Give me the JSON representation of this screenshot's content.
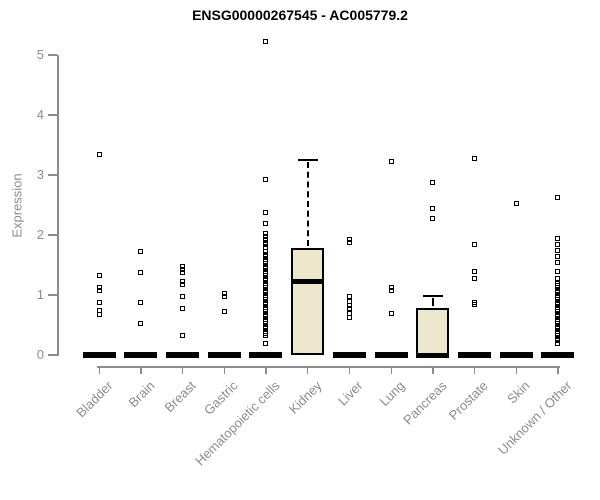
{
  "chart_data": {
    "type": "boxplot",
    "title": "ENSG00000267545 - AC005779.2",
    "ylabel": "Expression",
    "ylim": [
      0,
      5
    ],
    "yticks": [
      0,
      1,
      2,
      3,
      4,
      5
    ],
    "grid": false,
    "legend": "none",
    "marker": "open-square",
    "colors": {
      "box_fill": "#ece7cd",
      "box_border": "#000000",
      "axis": "#8c8c8c",
      "tick_label": "#8c8c8c",
      "title": "#000000",
      "marker": "#000000"
    },
    "categories": [
      "Bladder",
      "Brain",
      "Breast",
      "Gastric",
      "Hematopoietic cells",
      "Kidney",
      "Liver",
      "Lung",
      "Pancreas",
      "Prostate",
      "Skin",
      "Unknown / Other"
    ],
    "series": [
      {
        "name": "Bladder",
        "box": {
          "q1": 0,
          "median": 0,
          "q3": 0,
          "whisker_low": 0,
          "whisker_high": 0
        },
        "points": [
          3.35,
          1.33,
          1.13,
          1.07,
          0.87,
          0.75,
          0.67
        ]
      },
      {
        "name": "Brain",
        "box": {
          "q1": 0,
          "median": 0,
          "q3": 0,
          "whisker_low": 0,
          "whisker_high": 0
        },
        "points": [
          1.73,
          1.38,
          0.88,
          0.53
        ]
      },
      {
        "name": "Breast",
        "box": {
          "q1": 0,
          "median": 0,
          "q3": 0,
          "whisker_low": 0,
          "whisker_high": 0
        },
        "points": [
          1.47,
          1.42,
          1.37,
          1.22,
          1.18,
          0.97,
          0.78,
          0.33
        ]
      },
      {
        "name": "Gastric",
        "box": {
          "q1": 0,
          "median": 0,
          "q3": 0,
          "whisker_low": 0,
          "whisker_high": 0
        },
        "points": [
          1.03,
          0.97,
          0.72
        ]
      },
      {
        "name": "Hematopoietic cells",
        "box": {
          "q1": 0,
          "median": 0,
          "q3": 0,
          "whisker_low": 0,
          "whisker_high": 0
        },
        "points": [
          5.22,
          2.92,
          2.37,
          2.2,
          2.03,
          1.97,
          1.92,
          1.88,
          1.84,
          1.8,
          1.72,
          1.68,
          1.64,
          1.6,
          1.56,
          1.52,
          1.48,
          1.44,
          1.4,
          1.36,
          1.32,
          1.28,
          1.24,
          1.2,
          1.16,
          1.12,
          1.08,
          1.04,
          1.0,
          0.96,
          0.92,
          0.88,
          0.84,
          0.8,
          0.76,
          0.72,
          0.68,
          0.64,
          0.6,
          0.56,
          0.52,
          0.48,
          0.44,
          0.4,
          0.36,
          0.32,
          0.2
        ]
      },
      {
        "name": "Kidney",
        "box": {
          "q1": 0,
          "median": 1.22,
          "q3": 1.78,
          "whisker_low": 0,
          "whisker_high": 3.25
        },
        "points": []
      },
      {
        "name": "Liver",
        "box": {
          "q1": 0,
          "median": 0,
          "q3": 0,
          "whisker_low": 0,
          "whisker_high": 0
        },
        "points": [
          1.92,
          1.87,
          0.97,
          0.9,
          0.83,
          0.77,
          0.7,
          0.62
        ]
      },
      {
        "name": "Lung",
        "box": {
          "q1": 0,
          "median": 0,
          "q3": 0,
          "whisker_low": 0,
          "whisker_high": 0
        },
        "points": [
          3.23,
          1.13,
          1.07,
          0.7
        ]
      },
      {
        "name": "Pancreas",
        "box": {
          "q1": 0,
          "median": 0,
          "q3": 0.78,
          "whisker_low": 0,
          "whisker_high": 0.98
        },
        "points": [
          2.88,
          2.45,
          2.27
        ]
      },
      {
        "name": "Prostate",
        "box": {
          "q1": 0,
          "median": 0,
          "q3": 0,
          "whisker_low": 0,
          "whisker_high": 0
        },
        "points": [
          3.27,
          1.85,
          1.39,
          1.28,
          0.88,
          0.84
        ]
      },
      {
        "name": "Skin",
        "box": {
          "q1": 0,
          "median": 0,
          "q3": 0,
          "whisker_low": 0,
          "whisker_high": 0
        },
        "points": [
          2.53
        ]
      },
      {
        "name": "Unknown / Other",
        "box": {
          "q1": 0,
          "median": 0,
          "q3": 0,
          "whisker_low": 0,
          "whisker_high": 0
        },
        "points": [
          2.62,
          1.95,
          1.85,
          1.75,
          1.65,
          1.55,
          1.39,
          1.28,
          1.2,
          1.16,
          1.12,
          1.08,
          1.04,
          1.0,
          0.96,
          0.92,
          0.88,
          0.84,
          0.8,
          0.76,
          0.72,
          0.68,
          0.64,
          0.6,
          0.56,
          0.52,
          0.48,
          0.44,
          0.4,
          0.36,
          0.32,
          0.28,
          0.24,
          0.2
        ]
      }
    ]
  }
}
